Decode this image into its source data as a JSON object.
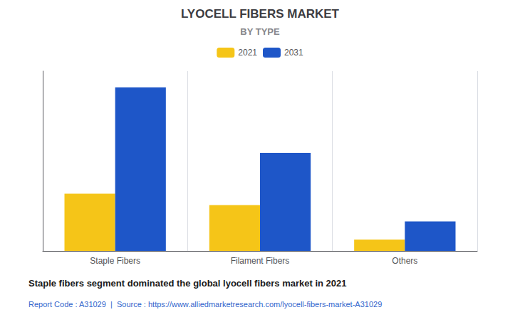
{
  "chart_data": {
    "type": "bar",
    "title": "LYOCELL FIBERS MARKET",
    "subtitle": "BY TYPE",
    "categories": [
      "Staple Fibers",
      "Filament Fibers",
      "Others"
    ],
    "series": [
      {
        "name": "2021",
        "color": "#F5C518",
        "values": [
          3.5,
          2.8,
          0.7
        ]
      },
      {
        "name": "2031",
        "color": "#1E56C8",
        "values": [
          10.0,
          6.0,
          1.8
        ]
      }
    ],
    "ylim": [
      0,
      11
    ],
    "grid": true,
    "legend": "top",
    "tick_labels": "x",
    "annotations": [
      "Staple fibers segment dominated the global lyocell fibers market in 2021",
      "Report Code : A31029  |  Source : https://www.alliedmarketresearch.com/lyocell-fibers-market-A31029"
    ]
  }
}
